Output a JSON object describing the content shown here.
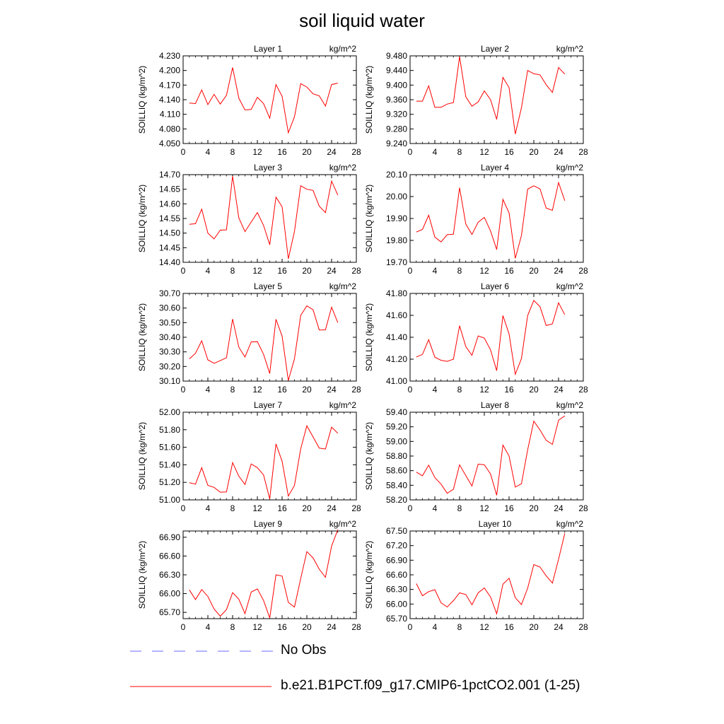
{
  "title": "soil liquid water",
  "legend": {
    "obs_label": "No Obs",
    "obs_color": "#8888ff",
    "model_label": "b.e21.B1PCT.f09_g17.CMIP6-1pctCO2.001 (1-25)",
    "model_color": "#ff0000"
  },
  "chart_data": [
    {
      "type": "line",
      "title": "Layer 1",
      "units": "kg/m^2",
      "ylabel": "SOILLIQ  (kg/m^2)",
      "xlim": [
        0,
        28
      ],
      "ylim": [
        4.05,
        4.23
      ],
      "xticks": [
        "0",
        "4",
        "8",
        "12",
        "16",
        "20",
        "24",
        "28"
      ],
      "yticks": [
        "4.050",
        "4.080",
        "4.110",
        "4.140",
        "4.170",
        "4.200",
        "4.230"
      ],
      "x": [
        1,
        2,
        3,
        4,
        5,
        6,
        7,
        8,
        9,
        10,
        11,
        12,
        13,
        14,
        15,
        16,
        17,
        18,
        19,
        20,
        21,
        22,
        23,
        24,
        25
      ],
      "values": [
        4.133,
        4.132,
        4.16,
        4.13,
        4.151,
        4.131,
        4.149,
        4.206,
        4.143,
        4.119,
        4.12,
        4.145,
        4.132,
        4.102,
        4.171,
        4.147,
        4.072,
        4.105,
        4.173,
        4.166,
        4.152,
        4.148,
        4.127,
        4.171,
        4.174
      ]
    },
    {
      "type": "line",
      "title": "Layer 2",
      "units": "kg/m^2",
      "ylabel": "SOILLIQ  (kg/m^2)",
      "xlim": [
        0,
        28
      ],
      "ylim": [
        9.24,
        9.48
      ],
      "xticks": [
        "0",
        "4",
        "8",
        "12",
        "16",
        "20",
        "24",
        "28"
      ],
      "yticks": [
        "9.240",
        "9.280",
        "9.320",
        "9.360",
        "9.400",
        "9.440",
        "9.480"
      ],
      "x": [
        1,
        2,
        3,
        4,
        5,
        6,
        7,
        8,
        9,
        10,
        11,
        12,
        13,
        14,
        15,
        16,
        17,
        18,
        19,
        20,
        21,
        22,
        23,
        24,
        25
      ],
      "values": [
        9.356,
        9.356,
        9.398,
        9.339,
        9.339,
        9.348,
        9.352,
        9.478,
        9.368,
        9.342,
        9.354,
        9.384,
        9.36,
        9.306,
        9.421,
        9.393,
        9.266,
        9.338,
        9.44,
        9.431,
        9.428,
        9.401,
        9.38,
        9.448,
        9.43
      ]
    },
    {
      "type": "line",
      "title": "Layer 3",
      "units": "kg/m^2",
      "ylabel": "SOILLIQ  (kg/m^2)",
      "xlim": [
        0,
        28
      ],
      "ylim": [
        14.4,
        14.7
      ],
      "xticks": [
        "0",
        "4",
        "8",
        "12",
        "16",
        "20",
        "24",
        "28"
      ],
      "yticks": [
        "14.40",
        "14.45",
        "14.50",
        "14.55",
        "14.60",
        "14.65",
        "14.70"
      ],
      "x": [
        1,
        2,
        3,
        4,
        5,
        6,
        7,
        8,
        9,
        10,
        11,
        12,
        13,
        14,
        15,
        16,
        17,
        18,
        19,
        20,
        21,
        22,
        23,
        24,
        25
      ],
      "values": [
        14.53,
        14.532,
        14.582,
        14.5,
        14.48,
        14.51,
        14.511,
        14.695,
        14.552,
        14.505,
        14.538,
        14.57,
        14.526,
        14.46,
        14.623,
        14.59,
        14.412,
        14.506,
        14.662,
        14.65,
        14.646,
        14.592,
        14.57,
        14.678,
        14.63
      ]
    },
    {
      "type": "line",
      "title": "Layer 4",
      "units": "kg/m^2",
      "ylabel": "SOILLIQ  (kg/m^2)",
      "xlim": [
        0,
        28
      ],
      "ylim": [
        19.7,
        20.1
      ],
      "xticks": [
        "0",
        "4",
        "8",
        "12",
        "16",
        "20",
        "24",
        "28"
      ],
      "yticks": [
        "19.70",
        "19.80",
        "19.90",
        "20.00",
        "20.10"
      ],
      "x": [
        1,
        2,
        3,
        4,
        5,
        6,
        7,
        8,
        9,
        10,
        11,
        12,
        13,
        14,
        15,
        16,
        17,
        18,
        19,
        20,
        21,
        22,
        23,
        24,
        25
      ],
      "values": [
        19.838,
        19.85,
        19.915,
        19.815,
        19.793,
        19.826,
        19.828,
        20.04,
        19.875,
        19.827,
        19.883,
        19.905,
        19.843,
        19.758,
        19.987,
        19.925,
        19.718,
        19.822,
        20.034,
        20.049,
        20.035,
        19.947,
        19.937,
        20.064,
        19.981
      ]
    },
    {
      "type": "line",
      "title": "Layer 5",
      "units": "kg/m^2",
      "ylabel": "SOILLIQ  (kg/m^2)",
      "xlim": [
        0,
        28
      ],
      "ylim": [
        30.1,
        30.7
      ],
      "xticks": [
        "0",
        "4",
        "8",
        "12",
        "16",
        "20",
        "24",
        "28"
      ],
      "yticks": [
        "30.10",
        "30.20",
        "30.30",
        "30.40",
        "30.50",
        "30.60",
        "30.70"
      ],
      "x": [
        1,
        2,
        3,
        4,
        5,
        6,
        7,
        8,
        9,
        10,
        11,
        12,
        13,
        14,
        15,
        16,
        17,
        18,
        19,
        20,
        21,
        22,
        23,
        24,
        25
      ],
      "values": [
        30.252,
        30.29,
        30.376,
        30.245,
        30.222,
        30.24,
        30.26,
        30.525,
        30.332,
        30.265,
        30.368,
        30.37,
        30.283,
        30.152,
        30.523,
        30.408,
        30.104,
        30.253,
        30.55,
        30.615,
        30.588,
        30.45,
        30.451,
        30.606,
        30.5
      ]
    },
    {
      "type": "line",
      "title": "Layer 6",
      "units": "kg/m^2",
      "ylabel": "SOILLIQ  (kg/m^2)",
      "xlim": [
        0,
        28
      ],
      "ylim": [
        41.0,
        41.8
      ],
      "xticks": [
        "0",
        "4",
        "8",
        "12",
        "16",
        "20",
        "24",
        "28"
      ],
      "yticks": [
        "41.00",
        "41.20",
        "41.40",
        "41.60",
        "41.80"
      ],
      "x": [
        1,
        2,
        3,
        4,
        5,
        6,
        7,
        8,
        9,
        10,
        11,
        12,
        13,
        14,
        15,
        16,
        17,
        18,
        19,
        20,
        21,
        22,
        23,
        24,
        25
      ],
      "values": [
        41.22,
        41.243,
        41.378,
        41.219,
        41.19,
        41.18,
        41.2,
        41.505,
        41.315,
        41.235,
        41.412,
        41.392,
        41.285,
        41.095,
        41.598,
        41.43,
        41.062,
        41.205,
        41.598,
        41.736,
        41.679,
        41.507,
        41.522,
        41.715,
        41.605
      ]
    },
    {
      "type": "line",
      "title": "Layer 7",
      "units": "kg/m^2",
      "ylabel": "SOILLIQ  (kg/m^2)",
      "xlim": [
        0,
        28
      ],
      "ylim": [
        51.0,
        52.0
      ],
      "xticks": [
        "0",
        "4",
        "8",
        "12",
        "16",
        "20",
        "24",
        "28"
      ],
      "yticks": [
        "51.00",
        "51.20",
        "51.40",
        "51.60",
        "51.80",
        "52.00"
      ],
      "x": [
        1,
        2,
        3,
        4,
        5,
        6,
        7,
        8,
        9,
        10,
        11,
        12,
        13,
        14,
        15,
        16,
        17,
        18,
        19,
        20,
        21,
        22,
        23,
        24,
        25
      ],
      "values": [
        51.195,
        51.18,
        51.368,
        51.165,
        51.143,
        51.088,
        51.09,
        51.425,
        51.27,
        51.175,
        51.41,
        51.368,
        51.285,
        51.01,
        51.638,
        51.44,
        51.043,
        51.165,
        51.582,
        51.845,
        51.718,
        51.59,
        51.58,
        51.83,
        51.76
      ]
    },
    {
      "type": "line",
      "title": "Layer 8",
      "units": "kg/m^2",
      "ylabel": "SOILLIQ  (kg/m^2)",
      "xlim": [
        0,
        28
      ],
      "ylim": [
        58.2,
        59.4
      ],
      "xticks": [
        "0",
        "4",
        "8",
        "12",
        "16",
        "20",
        "24",
        "28"
      ],
      "yticks": [
        "58.20",
        "58.40",
        "58.60",
        "58.80",
        "59.00",
        "59.20",
        "59.40"
      ],
      "x": [
        1,
        2,
        3,
        4,
        5,
        6,
        7,
        8,
        9,
        10,
        11,
        12,
        13,
        14,
        15,
        16,
        17,
        18,
        19,
        20,
        21,
        22,
        23,
        24,
        25
      ],
      "values": [
        58.58,
        58.53,
        58.675,
        58.505,
        58.415,
        58.29,
        58.345,
        58.68,
        58.533,
        58.39,
        58.69,
        58.68,
        58.555,
        58.263,
        58.95,
        58.8,
        58.375,
        58.42,
        58.885,
        59.278,
        59.155,
        59.015,
        58.96,
        59.29,
        59.35
      ]
    },
    {
      "type": "line",
      "title": "Layer 9",
      "units": "kg/m^2",
      "ylabel": "SOILLIQ  (kg/m^2)",
      "xlim": [
        0,
        28
      ],
      "ylim": [
        65.6,
        67.0
      ],
      "xticks": [
        "0",
        "4",
        "8",
        "12",
        "16",
        "20",
        "24",
        "28"
      ],
      "yticks": [
        "65.70",
        "66.00",
        "66.30",
        "66.60",
        "66.90"
      ],
      "x": [
        1,
        2,
        3,
        4,
        5,
        6,
        7,
        8,
        9,
        10,
        11,
        12,
        13,
        14,
        15,
        16,
        17,
        18,
        19,
        20,
        21,
        22,
        23,
        24,
        25
      ],
      "values": [
        66.06,
        65.905,
        66.065,
        65.955,
        65.755,
        65.64,
        65.745,
        66.015,
        65.91,
        65.68,
        66.025,
        66.075,
        65.89,
        65.61,
        66.3,
        66.28,
        65.86,
        65.785,
        66.24,
        66.67,
        66.57,
        66.39,
        66.26,
        66.76,
        67.02
      ]
    },
    {
      "type": "line",
      "title": "Layer 10",
      "units": "kg/m^2",
      "ylabel": "SOILLIQ  (kg/m^2)",
      "xlim": [
        0,
        28
      ],
      "ylim": [
        65.7,
        67.5
      ],
      "xticks": [
        "0",
        "4",
        "8",
        "12",
        "16",
        "20",
        "24",
        "28"
      ],
      "yticks": [
        "65.70",
        "66.00",
        "66.30",
        "66.60",
        "66.90",
        "67.20",
        "67.50"
      ],
      "x": [
        1,
        2,
        3,
        4,
        5,
        6,
        7,
        8,
        9,
        10,
        11,
        12,
        13,
        14,
        15,
        16,
        17,
        18,
        19,
        20,
        21,
        22,
        23,
        24,
        25
      ],
      "values": [
        66.42,
        66.17,
        66.255,
        66.295,
        66.025,
        65.94,
        66.07,
        66.23,
        66.195,
        65.985,
        66.23,
        66.33,
        66.145,
        65.8,
        66.405,
        66.53,
        66.13,
        65.99,
        66.325,
        66.81,
        66.76,
        66.58,
        66.43,
        66.92,
        67.45
      ]
    }
  ]
}
